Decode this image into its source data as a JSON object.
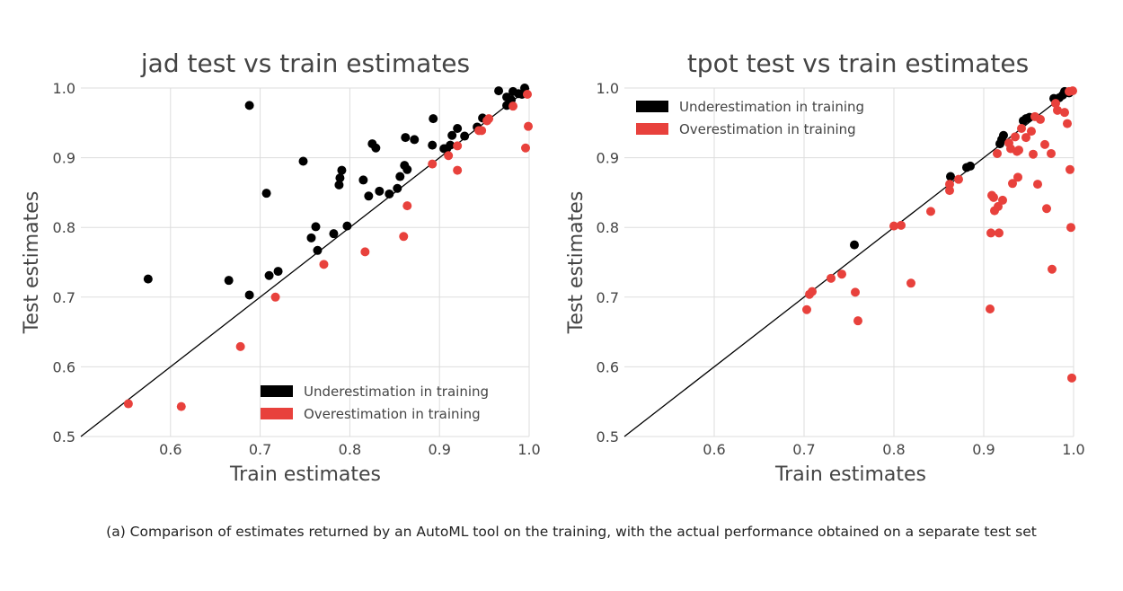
{
  "caption": "(a) Comparison of estimates returned by an AutoML tool on the training, with the actual performance obtained on a separate test set",
  "colors": {
    "under": "#000000",
    "over": "#e8413c"
  },
  "chart_data": [
    {
      "type": "scatter",
      "title": "jad test vs train estimates",
      "xlabel": "Train estimates",
      "ylabel": "Test estimates",
      "xlim": [
        0.5,
        1.0
      ],
      "ylim": [
        0.5,
        1.0
      ],
      "xticks": [
        "0.6",
        "0.7",
        "0.8",
        "0.9",
        "1.0"
      ],
      "yticks": [
        "0.5",
        "0.6",
        "0.7",
        "0.8",
        "0.9",
        "1.0"
      ],
      "grid": true,
      "diagonal": true,
      "legend_position": "bottom-right",
      "series": [
        {
          "name": "Underestimation in training",
          "points": [
            [
              0.575,
              0.726
            ],
            [
              0.665,
              0.724
            ],
            [
              0.688,
              0.975
            ],
            [
              0.688,
              0.703
            ],
            [
              0.707,
              0.849
            ],
            [
              0.71,
              0.731
            ],
            [
              0.72,
              0.737
            ],
            [
              0.748,
              0.895
            ],
            [
              0.757,
              0.785
            ],
            [
              0.762,
              0.801
            ],
            [
              0.764,
              0.767
            ],
            [
              0.782,
              0.791
            ],
            [
              0.788,
              0.861
            ],
            [
              0.789,
              0.871
            ],
            [
              0.791,
              0.882
            ],
            [
              0.797,
              0.802
            ],
            [
              0.815,
              0.868
            ],
            [
              0.821,
              0.845
            ],
            [
              0.825,
              0.92
            ],
            [
              0.829,
              0.914
            ],
            [
              0.833,
              0.852
            ],
            [
              0.844,
              0.848
            ],
            [
              0.853,
              0.856
            ],
            [
              0.856,
              0.873
            ],
            [
              0.861,
              0.889
            ],
            [
              0.862,
              0.929
            ],
            [
              0.864,
              0.883
            ],
            [
              0.872,
              0.926
            ],
            [
              0.892,
              0.918
            ],
            [
              0.893,
              0.956
            ],
            [
              0.905,
              0.913
            ],
            [
              0.908,
              0.913
            ],
            [
              0.912,
              0.918
            ],
            [
              0.914,
              0.932
            ],
            [
              0.92,
              0.942
            ],
            [
              0.928,
              0.931
            ],
            [
              0.942,
              0.944
            ],
            [
              0.948,
              0.957
            ],
            [
              0.966,
              0.996
            ],
            [
              0.975,
              0.975
            ],
            [
              0.975,
              0.987
            ],
            [
              0.98,
              0.983
            ],
            [
              0.982,
              0.995
            ],
            [
              0.988,
              0.992
            ],
            [
              0.992,
              0.991
            ],
            [
              0.995,
              1.0
            ]
          ]
        },
        {
          "name": "Overestimation in training",
          "points": [
            [
              0.553,
              0.547
            ],
            [
              0.612,
              0.543
            ],
            [
              0.678,
              0.629
            ],
            [
              0.717,
              0.7
            ],
            [
              0.771,
              0.747
            ],
            [
              0.817,
              0.765
            ],
            [
              0.86,
              0.787
            ],
            [
              0.864,
              0.831
            ],
            [
              0.892,
              0.891
            ],
            [
              0.91,
              0.903
            ],
            [
              0.92,
              0.882
            ],
            [
              0.92,
              0.917
            ],
            [
              0.944,
              0.939
            ],
            [
              0.947,
              0.939
            ],
            [
              0.953,
              0.953
            ],
            [
              0.955,
              0.956
            ],
            [
              0.982,
              0.974
            ],
            [
              0.996,
              0.914
            ],
            [
              0.998,
              0.991
            ],
            [
              0.999,
              0.945
            ]
          ]
        }
      ]
    },
    {
      "type": "scatter",
      "title": "tpot test vs train estimates",
      "xlabel": "Train estimates",
      "ylabel": "Test estimates",
      "xlim": [
        0.5,
        1.0
      ],
      "ylim": [
        0.5,
        1.0
      ],
      "xticks": [
        "0.6",
        "0.7",
        "0.8",
        "0.9",
        "1.0"
      ],
      "yticks": [
        "0.5",
        "0.6",
        "0.7",
        "0.8",
        "0.9",
        "1.0"
      ],
      "grid": true,
      "diagonal": true,
      "legend_position": "top-left",
      "series": [
        {
          "name": "Underestimation in training",
          "points": [
            [
              0.756,
              0.775
            ],
            [
              0.863,
              0.873
            ],
            [
              0.881,
              0.886
            ],
            [
              0.885,
              0.888
            ],
            [
              0.918,
              0.92
            ],
            [
              0.92,
              0.926
            ],
            [
              0.922,
              0.932
            ],
            [
              0.944,
              0.953
            ],
            [
              0.947,
              0.956
            ],
            [
              0.951,
              0.958
            ],
            [
              0.978,
              0.985
            ],
            [
              0.984,
              0.986
            ],
            [
              0.988,
              0.99
            ],
            [
              0.99,
              0.995
            ],
            [
              0.995,
              0.993
            ]
          ]
        },
        {
          "name": "Overestimation in training",
          "points": [
            [
              0.703,
              0.682
            ],
            [
              0.706,
              0.704
            ],
            [
              0.709,
              0.708
            ],
            [
              0.73,
              0.727
            ],
            [
              0.742,
              0.733
            ],
            [
              0.757,
              0.707
            ],
            [
              0.76,
              0.666
            ],
            [
              0.8,
              0.802
            ],
            [
              0.808,
              0.803
            ],
            [
              0.819,
              0.72
            ],
            [
              0.841,
              0.823
            ],
            [
              0.862,
              0.853
            ],
            [
              0.862,
              0.862
            ],
            [
              0.872,
              0.869
            ],
            [
              0.907,
              0.683
            ],
            [
              0.908,
              0.792
            ],
            [
              0.909,
              0.846
            ],
            [
              0.911,
              0.843
            ],
            [
              0.912,
              0.824
            ],
            [
              0.915,
              0.906
            ],
            [
              0.916,
              0.83
            ],
            [
              0.917,
              0.792
            ],
            [
              0.921,
              0.839
            ],
            [
              0.928,
              0.921
            ],
            [
              0.93,
              0.913
            ],
            [
              0.932,
              0.863
            ],
            [
              0.935,
              0.93
            ],
            [
              0.937,
              0.909
            ],
            [
              0.938,
              0.872
            ],
            [
              0.939,
              0.911
            ],
            [
              0.942,
              0.942
            ],
            [
              0.947,
              0.929
            ],
            [
              0.953,
              0.938
            ],
            [
              0.955,
              0.905
            ],
            [
              0.957,
              0.959
            ],
            [
              0.96,
              0.862
            ],
            [
              0.963,
              0.955
            ],
            [
              0.968,
              0.919
            ],
            [
              0.97,
              0.827
            ],
            [
              0.975,
              0.906
            ],
            [
              0.976,
              0.74
            ],
            [
              0.98,
              0.978
            ],
            [
              0.982,
              0.968
            ],
            [
              0.99,
              0.965
            ],
            [
              0.993,
              0.949
            ],
            [
              0.995,
              0.995
            ],
            [
              0.996,
              0.883
            ],
            [
              0.997,
              0.8
            ],
            [
              0.998,
              0.584
            ],
            [
              0.999,
              0.996
            ]
          ]
        }
      ]
    }
  ]
}
